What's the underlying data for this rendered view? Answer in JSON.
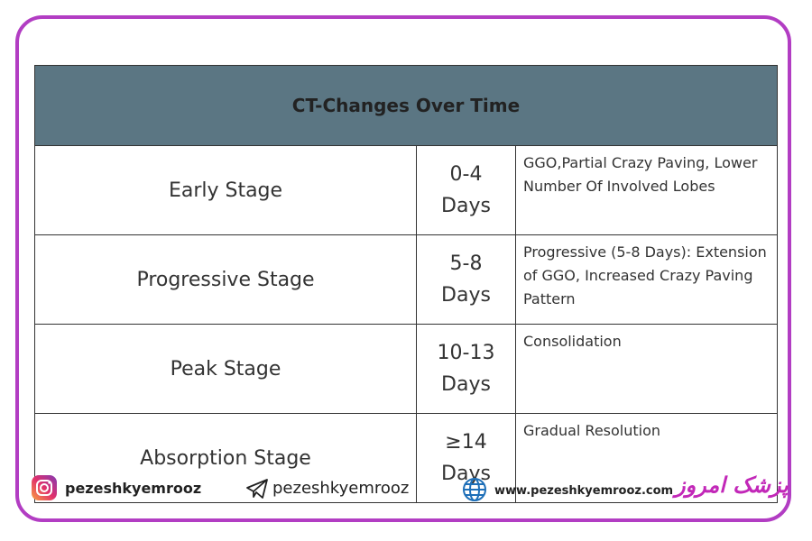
{
  "header": {
    "title": "CT-Changes Over Time"
  },
  "table": {
    "rows": [
      [
        "Early Stage",
        "0-4 Days",
        "GGO,Partial Crazy Paving, Lower Number Of Involved Lobes"
      ],
      [
        "Progressive Stage",
        "5-8 Days",
        "Progressive (5-8 Days): Extension of GGO, Increased Crazy Paving Pattern"
      ],
      [
        "Peak Stage",
        "10-13 Days",
        "Consolidation"
      ],
      [
        "Absorption Stage",
        "≥14 Days",
        "Gradual Resolution"
      ]
    ]
  },
  "footer": {
    "instagram": "pezeshkyemrooz",
    "telegram": "pezeshkyemrooz",
    "website": "www.pezeshkyemrooz.com",
    "logo": "پزشک امروز"
  }
}
